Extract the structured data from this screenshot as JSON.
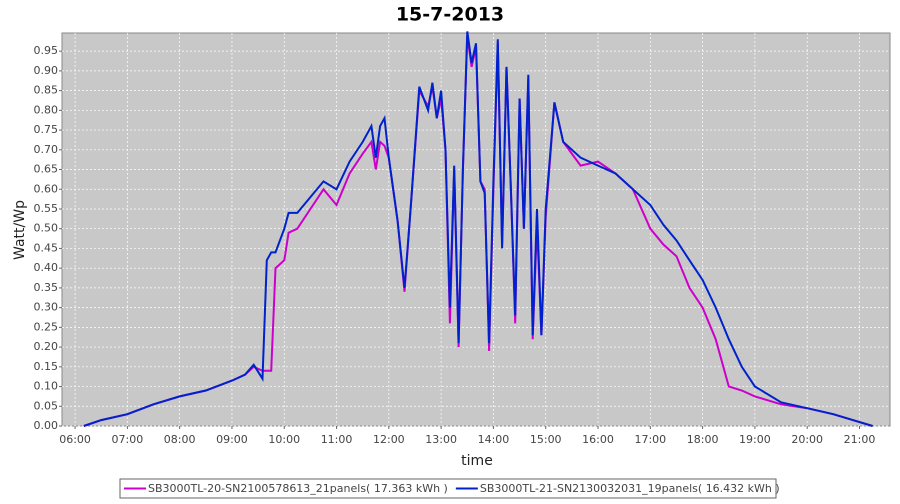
{
  "chart_data": {
    "type": "line",
    "title": "15-7-2013",
    "x_label": "time",
    "y_label": "Watt/Wp",
    "x": [
      "06:10",
      "06:30",
      "07:00",
      "07:30",
      "08:00",
      "08:30",
      "09:00",
      "09:15",
      "09:25",
      "09:35",
      "09:40",
      "09:45",
      "09:50",
      "10:00",
      "10:05",
      "10:15",
      "10:30",
      "10:45",
      "11:00",
      "11:15",
      "11:30",
      "11:40",
      "11:45",
      "11:50",
      "11:55",
      "12:00",
      "12:10",
      "12:18",
      "12:25",
      "12:35",
      "12:45",
      "12:50",
      "12:55",
      "13:00",
      "13:05",
      "13:10",
      "13:15",
      "13:20",
      "13:25",
      "13:30",
      "13:35",
      "13:40",
      "13:45",
      "13:50",
      "13:55",
      "14:00",
      "14:05",
      "14:10",
      "14:15",
      "14:20",
      "14:25",
      "14:30",
      "14:35",
      "14:40",
      "14:45",
      "14:50",
      "14:55",
      "15:00",
      "15:10",
      "15:20",
      "15:40",
      "16:00",
      "16:20",
      "16:40",
      "17:00",
      "17:15",
      "17:30",
      "17:45",
      "18:00",
      "18:15",
      "18:30",
      "18:45",
      "19:00",
      "19:30",
      "20:00",
      "20:30",
      "21:00",
      "21:15"
    ],
    "series": [
      {
        "name": "SB3000TL-20-SN2100578613_21panels( 17.363 kWh )",
        "color": "#cc00cc",
        "values": [
          0,
          0.015,
          0.03,
          0.055,
          0.075,
          0.09,
          0.115,
          0.13,
          0.15,
          0.14,
          0.14,
          0.14,
          0.4,
          0.42,
          0.49,
          0.5,
          0.55,
          0.6,
          0.56,
          0.64,
          0.69,
          0.72,
          0.65,
          0.72,
          0.71,
          0.68,
          0.52,
          0.34,
          0.55,
          0.85,
          0.81,
          0.86,
          0.78,
          0.83,
          0.7,
          0.26,
          0.65,
          0.2,
          0.65,
          0.99,
          0.91,
          0.96,
          0.62,
          0.6,
          0.19,
          0.6,
          0.97,
          0.46,
          0.91,
          0.6,
          0.26,
          0.83,
          0.5,
          0.88,
          0.22,
          0.51,
          0.23,
          0.53,
          0.82,
          0.72,
          0.66,
          0.67,
          0.64,
          0.6,
          0.5,
          0.46,
          0.43,
          0.35,
          0.3,
          0.22,
          0.1,
          0.09,
          0.075,
          0.055,
          0.045,
          0.03,
          0.01,
          0
        ]
      },
      {
        "name": "SB3000TL-21-SN2130032031_19panels( 16.432 kWh )",
        "color": "#0022cc",
        "values": [
          0,
          0.015,
          0.03,
          0.055,
          0.075,
          0.09,
          0.115,
          0.13,
          0.155,
          0.12,
          0.42,
          0.44,
          0.44,
          0.5,
          0.54,
          0.54,
          0.58,
          0.62,
          0.6,
          0.67,
          0.72,
          0.76,
          0.68,
          0.76,
          0.78,
          0.68,
          0.52,
          0.35,
          0.55,
          0.86,
          0.8,
          0.87,
          0.78,
          0.85,
          0.7,
          0.3,
          0.66,
          0.21,
          0.65,
          1.0,
          0.92,
          0.97,
          0.62,
          0.59,
          0.21,
          0.62,
          0.98,
          0.45,
          0.91,
          0.6,
          0.28,
          0.83,
          0.5,
          0.89,
          0.23,
          0.55,
          0.23,
          0.55,
          0.82,
          0.72,
          0.68,
          0.66,
          0.64,
          0.6,
          0.56,
          0.51,
          0.47,
          0.42,
          0.37,
          0.3,
          0.22,
          0.15,
          0.1,
          0.06,
          0.045,
          0.03,
          0.01,
          0
        ]
      }
    ],
    "xlim": [
      "05:45",
      "21:35"
    ],
    "xticks": [
      "06:00",
      "07:00",
      "08:00",
      "09:00",
      "10:00",
      "11:00",
      "12:00",
      "13:00",
      "14:00",
      "15:00",
      "16:00",
      "17:00",
      "18:00",
      "19:00",
      "20:00",
      "21:00"
    ],
    "ylim": [
      0,
      0.996
    ],
    "yticks": [
      {
        "value": 0,
        "label": "0.00"
      },
      {
        "value": 0.05,
        "label": "0.05"
      },
      {
        "value": 0.1,
        "label": "0.10"
      },
      {
        "value": 0.15,
        "label": "0.15"
      },
      {
        "value": 0.2,
        "label": "0.20"
      },
      {
        "value": 0.25,
        "label": "0.25"
      },
      {
        "value": 0.3,
        "label": "0.30"
      },
      {
        "value": 0.35,
        "label": "0.35"
      },
      {
        "value": 0.4,
        "label": "0.40"
      },
      {
        "value": 0.45,
        "label": "0.45"
      },
      {
        "value": 0.5,
        "label": "0.50"
      },
      {
        "value": 0.55,
        "label": "0.55"
      },
      {
        "value": 0.6,
        "label": "0.60"
      },
      {
        "value": 0.65,
        "label": "0.65"
      },
      {
        "value": 0.7,
        "label": "0.70"
      },
      {
        "value": 0.75,
        "label": "0.75"
      },
      {
        "value": 0.8,
        "label": "0.80"
      },
      {
        "value": 0.85,
        "label": "0.85"
      },
      {
        "value": 0.9,
        "label": "0.90"
      },
      {
        "value": 0.95,
        "label": "0.95"
      }
    ],
    "grid": true,
    "legend": "bottom"
  }
}
